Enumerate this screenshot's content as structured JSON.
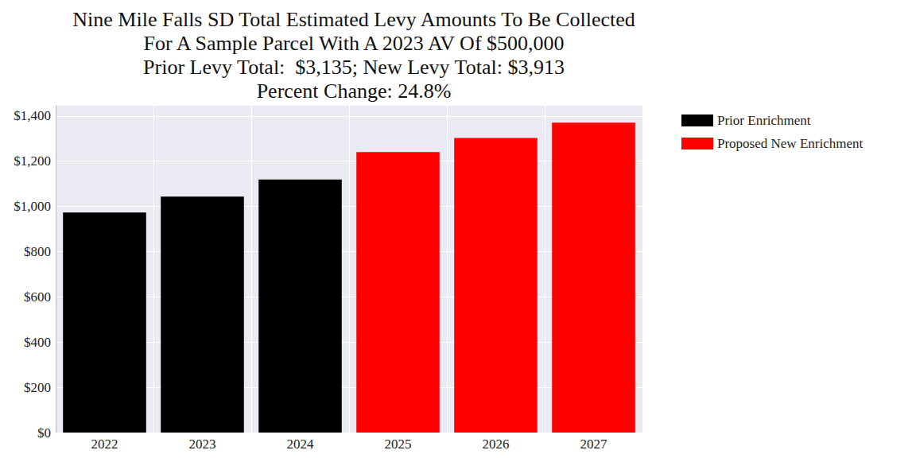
{
  "chart_data": {
    "type": "bar",
    "title": [
      "Nine Mile Falls SD Total Estimated Levy Amounts To Be Collected",
      "For A Sample Parcel With A 2023 AV Of $500,000",
      "Prior Levy Total:  $3,135; New Levy Total: $3,913",
      "Percent Change: 24.8%"
    ],
    "categories": [
      "2022",
      "2023",
      "2024",
      "2025",
      "2026",
      "2027"
    ],
    "series": [
      {
        "name": "Prior Enrichment",
        "color": "#000000",
        "values": [
          973,
          1043,
          1119,
          null,
          null,
          null
        ]
      },
      {
        "name": "Proposed New Enrichment",
        "color": "#ff0000",
        "values": [
          null,
          null,
          null,
          1240,
          1303,
          1370
        ]
      }
    ],
    "ylim": [
      0,
      1445
    ],
    "yticks": [
      {
        "value": 0,
        "label": "$0"
      },
      {
        "value": 200,
        "label": "$200"
      },
      {
        "value": 400,
        "label": "$400"
      },
      {
        "value": 600,
        "label": "$600"
      },
      {
        "value": 800,
        "label": "$800"
      },
      {
        "value": 1000,
        "label": "$1,000"
      },
      {
        "value": 1200,
        "label": "$1,200"
      },
      {
        "value": 1400,
        "label": "$1,400"
      }
    ],
    "grid": true,
    "legend": "right"
  }
}
